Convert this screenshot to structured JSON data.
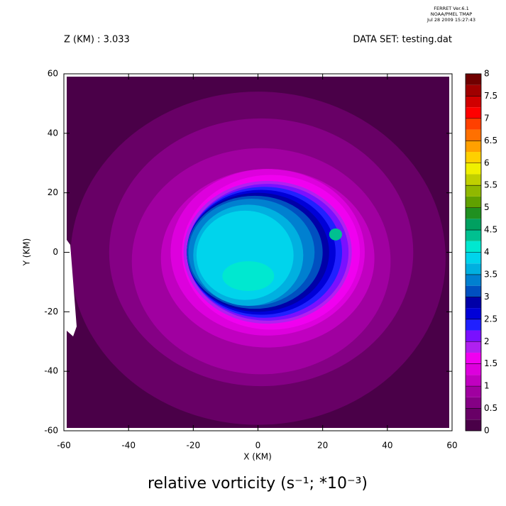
{
  "chart_data": {
    "type": "contour",
    "stamp": [
      "FERRET  Ver.6.1",
      "NOAA/PMEL TMAP",
      "Jul 28 2009 15:27:43"
    ],
    "subtitle_left": "Z (KM) : 3.033",
    "subtitle_right": "DATA SET: testing.dat",
    "title": "relative vorticity (s⁻¹; *10⁻³)",
    "xlabel": "X (KM)",
    "ylabel": "Y (KM)",
    "xlim": [
      -60,
      60
    ],
    "ylim": [
      -60,
      60
    ],
    "xticks": [
      -60,
      -40,
      -20,
      0,
      20,
      40,
      60
    ],
    "yticks": [
      -60,
      -40,
      -20,
      0,
      20,
      40,
      60
    ],
    "levels": [
      0,
      0.25,
      0.5,
      0.75,
      1,
      1.25,
      1.5,
      1.75,
      2,
      2.25,
      2.5,
      2.75,
      3,
      3.25,
      3.5,
      3.75,
      4,
      4.25,
      4.5,
      4.75,
      5,
      5.25,
      5.5,
      5.75,
      6,
      6.25,
      6.5,
      6.75,
      7,
      7.25,
      7.5,
      7.75,
      8
    ],
    "colors": [
      "#4a0048",
      "#680066",
      "#850085",
      "#a000a0",
      "#c000c0",
      "#dd00dd",
      "#f000f0",
      "#b020f0",
      "#7a10ff",
      "#2020ff",
      "#0000d8",
      "#0000a8",
      "#0050c0",
      "#0080d0",
      "#00b0e0",
      "#00d4ec",
      "#00e8d0",
      "#00c090",
      "#00a060",
      "#209020",
      "#60a000",
      "#90b800",
      "#c0d000",
      "#f0f000",
      "#ffd000",
      "#ffa000",
      "#ff7000",
      "#ff4000",
      "#ff0000",
      "#d00000",
      "#a00000",
      "#700000"
    ],
    "colorbar_ticks": [
      0,
      0.5,
      1,
      1.5,
      2,
      2.5,
      3,
      3.5,
      4,
      4.5,
      5,
      5.5,
      6,
      6.5,
      7,
      7.5,
      8
    ],
    "contours": [
      {
        "level": 0.25,
        "cx": 0,
        "cy": -2,
        "rx": 58,
        "ry": 56
      },
      {
        "level": 0.5,
        "cx": 1,
        "cy": 0,
        "rx": 47,
        "ry": 45
      },
      {
        "level": 0.75,
        "cx": 1,
        "cy": -3,
        "rx": 40,
        "ry": 38
      },
      {
        "level": 1,
        "cx": 3,
        "cy": -2,
        "rx": 33,
        "ry": 30
      },
      {
        "level": 1.25,
        "cx": 3,
        "cy": 0,
        "rx": 30,
        "ry": 28
      },
      {
        "level": 1.5,
        "cx": 4,
        "cy": 0,
        "rx": 27.5,
        "ry": 26
      },
      {
        "level": 1.75,
        "cx": 3,
        "cy": 0,
        "rx": 26,
        "ry": 24
      },
      {
        "level": 2,
        "cx": 3,
        "cy": 0,
        "rx": 25,
        "ry": 23
      },
      {
        "level": 2.25,
        "cx": 2,
        "cy": 0,
        "rx": 24,
        "ry": 22
      },
      {
        "level": 2.5,
        "cx": 1,
        "cy": 0,
        "rx": 23,
        "ry": 21
      },
      {
        "level": 2.75,
        "cx": 0,
        "cy": 0,
        "rx": 22,
        "ry": 20
      },
      {
        "level": 3,
        "cx": -1,
        "cy": 0,
        "rx": 21,
        "ry": 19
      },
      {
        "level": 3.25,
        "cx": -2,
        "cy": 0,
        "rx": 19.5,
        "ry": 18
      },
      {
        "level": 3.5,
        "cx": -3,
        "cy": -1,
        "rx": 17,
        "ry": 17
      },
      {
        "level": 3.75,
        "cx": -4,
        "cy": -1,
        "rx": 15,
        "ry": 15
      },
      {
        "level": 4,
        "cx": -3,
        "cy": -8,
        "rx": 8,
        "ry": 5
      },
      {
        "level": 4.25,
        "cx": 24,
        "cy": 6,
        "rx": 2,
        "ry": 2
      }
    ]
  }
}
